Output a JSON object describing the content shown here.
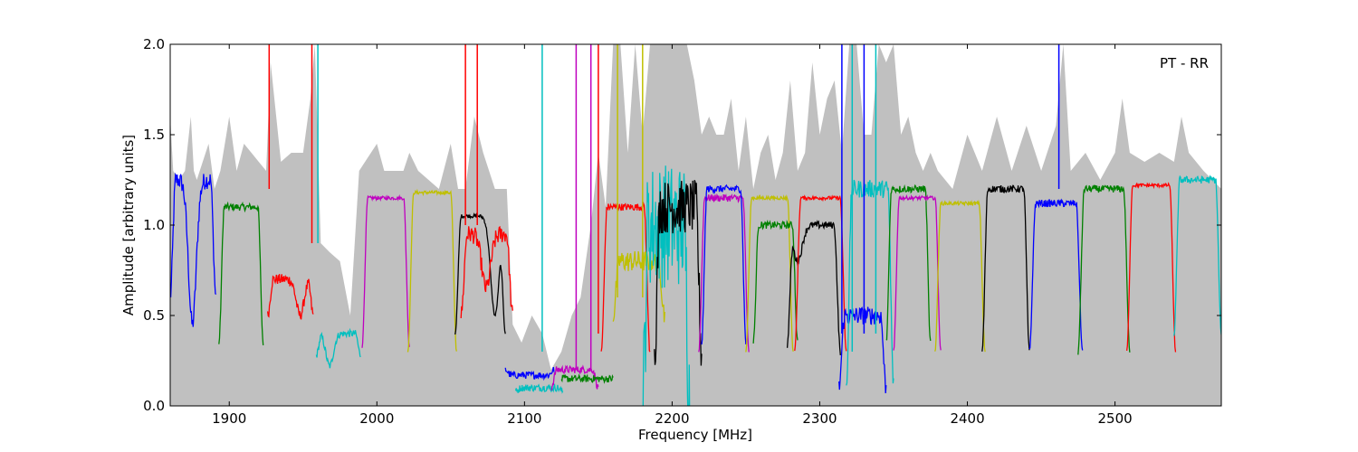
{
  "chart_data": {
    "type": "line",
    "title": "",
    "annotation": "PT - RR",
    "xlabel": "Frequency [MHz]",
    "ylabel": "Amplitude [arbitrary units]",
    "xlim": [
      1860,
      2572
    ],
    "ylim": [
      0.0,
      2.0
    ],
    "xticks": [
      1900,
      2000,
      2100,
      2200,
      2300,
      2400,
      2500
    ],
    "xtick_labels": [
      "1900",
      "2000",
      "2100",
      "2200",
      "2300",
      "2400",
      "2500"
    ],
    "yticks": [
      0.0,
      0.5,
      1.0,
      1.5,
      2.0
    ],
    "ytick_labels": [
      "0.0",
      "0.5",
      "1.0",
      "1.5",
      "2.0"
    ],
    "grid": false,
    "background": {
      "color": "#c0c0c0",
      "x": [
        1860,
        1862,
        1866,
        1870,
        1874,
        1876,
        1878,
        1882,
        1886,
        1890,
        1894,
        1898,
        1900,
        1905,
        1910,
        1915,
        1920,
        1925,
        1928,
        1935,
        1942,
        1950,
        1955,
        1958,
        1962,
        1968,
        1975,
        1982,
        1988,
        1992,
        2000,
        2005,
        2012,
        2018,
        2022,
        2028,
        2035,
        2042,
        2050,
        2055,
        2060,
        2066,
        2072,
        2080,
        2088,
        2092,
        2098,
        2105,
        2112,
        2118,
        2125,
        2132,
        2138,
        2145,
        2150,
        2155,
        2160,
        2165,
        2170,
        2175,
        2180,
        2185,
        2190,
        2195,
        2200,
        2205,
        2210,
        2215,
        2220,
        2225,
        2230,
        2235,
        2240,
        2245,
        2250,
        2255,
        2260,
        2265,
        2270,
        2275,
        2280,
        2285,
        2290,
        2295,
        2300,
        2305,
        2310,
        2315,
        2320,
        2325,
        2330,
        2335,
        2340,
        2345,
        2350,
        2355,
        2360,
        2365,
        2370,
        2375,
        2380,
        2390,
        2400,
        2410,
        2420,
        2430,
        2440,
        2450,
        2460,
        2465,
        2470,
        2480,
        2490,
        2500,
        2505,
        2510,
        2520,
        2530,
        2540,
        2545,
        2550,
        2560,
        2572
      ],
      "y": [
        1.6,
        1.3,
        1.25,
        1.3,
        1.6,
        1.3,
        1.25,
        1.35,
        1.45,
        1.2,
        1.3,
        1.5,
        1.6,
        1.3,
        1.45,
        1.4,
        1.35,
        1.3,
        1.9,
        1.35,
        1.4,
        1.4,
        1.7,
        2.0,
        0.9,
        0.85,
        0.8,
        0.5,
        1.3,
        1.35,
        1.45,
        1.3,
        1.3,
        1.3,
        1.4,
        1.3,
        1.25,
        1.2,
        1.45,
        1.2,
        1.2,
        1.6,
        1.4,
        1.2,
        1.2,
        0.45,
        0.35,
        0.5,
        0.4,
        0.2,
        0.3,
        0.5,
        0.6,
        1.0,
        1.4,
        1.1,
        2.0,
        2.0,
        1.4,
        2.0,
        1.5,
        2.0,
        2.0,
        2.0,
        2.0,
        2.0,
        2.0,
        1.8,
        1.5,
        1.6,
        1.5,
        1.5,
        1.7,
        1.3,
        1.6,
        1.2,
        1.4,
        1.5,
        1.25,
        1.4,
        1.8,
        1.3,
        1.4,
        1.9,
        1.5,
        1.7,
        1.8,
        1.4,
        2.0,
        2.0,
        1.5,
        1.5,
        2.0,
        1.9,
        2.0,
        1.5,
        1.6,
        1.4,
        1.3,
        1.4,
        1.3,
        1.2,
        1.5,
        1.3,
        1.6,
        1.3,
        1.55,
        1.3,
        1.55,
        2.0,
        1.3,
        1.4,
        1.25,
        1.4,
        1.7,
        1.4,
        1.35,
        1.4,
        1.35,
        1.6,
        1.4,
        1.3,
        1.2
      ]
    },
    "series_colors": [
      "#0000ff",
      "#008000",
      "#ff0000",
      "#00bfbf",
      "#bf00bf",
      "#bfbf00",
      "#000000"
    ],
    "segments": [
      {
        "color": "#0000ff",
        "x0": 1860,
        "x1": 1891,
        "y_edge": 0.6,
        "y_top": 1.25,
        "dip": 0.45,
        "dip_at": 1875,
        "noise": 0.05
      },
      {
        "color": "#008000",
        "x0": 1893,
        "x1": 1923,
        "y_edge": 0.35,
        "y_top": 1.1,
        "dip": null,
        "dip_at": null,
        "noise": 0.02
      },
      {
        "color": "#ff0000",
        "x0": 1926,
        "x1": 1957,
        "y_edge": 0.5,
        "y_top": 0.7,
        "dip": 0.5,
        "dip_at": 1948,
        "noise": 0.03
      },
      {
        "color": "#00bfbf",
        "x0": 1959,
        "x1": 1989,
        "y_edge": 0.28,
        "y_top": 0.4,
        "dip": 0.22,
        "dip_at": 1968,
        "noise": 0.02
      },
      {
        "color": "#bf00bf",
        "x0": 1990,
        "x1": 2022,
        "y_edge": 0.33,
        "y_top": 1.15,
        "dip": null,
        "dip_at": null,
        "noise": 0.01
      },
      {
        "color": "#bfbf00",
        "x0": 2021,
        "x1": 2054,
        "y_edge": 0.3,
        "y_top": 1.18,
        "dip": null,
        "dip_at": null,
        "noise": 0.01
      },
      {
        "color": "#000000",
        "x0": 2053,
        "x1": 2087,
        "y_edge": 0.4,
        "y_top": 1.05,
        "dip": 0.5,
        "dip_at": 2080,
        "noise": 0.01
      },
      {
        "color": "#ff0000",
        "x0": 2057,
        "x1": 2092,
        "y_edge": 0.5,
        "y_top": 0.95,
        "dip": 0.65,
        "dip_at": 2074,
        "noise": 0.05
      },
      {
        "color": "#0000ff",
        "x0": 2087,
        "x1": 2120,
        "y_edge": 0.2,
        "y_top": 0.17,
        "dip": null,
        "dip_at": null,
        "noise": 0.02
      },
      {
        "color": "#00bfbf",
        "x0": 2094,
        "x1": 2126,
        "y_edge": 0.08,
        "y_top": 0.1,
        "dip": null,
        "dip_at": null,
        "noise": 0.02
      },
      {
        "color": "#bf00bf",
        "x0": 2118,
        "x1": 2150,
        "y_edge": 0.1,
        "y_top": 0.2,
        "dip": null,
        "dip_at": null,
        "noise": 0.02
      },
      {
        "color": "#008000",
        "x0": 2125,
        "x1": 2160,
        "y_edge": 0.15,
        "y_top": 0.15,
        "dip": null,
        "dip_at": null,
        "noise": 0.02
      },
      {
        "color": "#ff0000",
        "x0": 2152,
        "x1": 2185,
        "y_edge": 0.3,
        "y_top": 1.1,
        "dip": null,
        "dip_at": null,
        "noise": 0.02
      },
      {
        "color": "#bfbf00",
        "x0": 2160,
        "x1": 2195,
        "y_edge": 0.5,
        "y_top": 0.8,
        "dip": 0.8,
        "dip_at": 2180,
        "noise": 0.06
      },
      {
        "color": "#00bfbf",
        "x0": 2180,
        "x1": 2212,
        "y_edge": 0.0,
        "y_top": 1.0,
        "dip": null,
        "dip_at": null,
        "noise": 0.35
      },
      {
        "color": "#000000",
        "x0": 2188,
        "x1": 2220,
        "y_edge": 0.3,
        "y_top": 1.1,
        "dip": null,
        "dip_at": null,
        "noise": 0.15
      },
      {
        "color": "#bf00bf",
        "x0": 2218,
        "x1": 2252,
        "y_edge": 0.3,
        "y_top": 1.15,
        "dip": null,
        "dip_at": null,
        "noise": 0.02
      },
      {
        "color": "#0000ff",
        "x0": 2220,
        "x1": 2250,
        "y_edge": 0.35,
        "y_top": 1.2,
        "dip": null,
        "dip_at": null,
        "noise": 0.02
      },
      {
        "color": "#bfbf00",
        "x0": 2250,
        "x1": 2282,
        "y_edge": 0.3,
        "y_top": 1.15,
        "dip": null,
        "dip_at": null,
        "noise": 0.01
      },
      {
        "color": "#008000",
        "x0": 2255,
        "x1": 2285,
        "y_edge": 0.35,
        "y_top": 1.0,
        "dip": null,
        "dip_at": null,
        "noise": 0.02
      },
      {
        "color": "#000000",
        "x0": 2278,
        "x1": 2314,
        "y_edge": 0.3,
        "y_top": 1.0,
        "dip": 0.8,
        "dip_at": 2285,
        "noise": 0.02
      },
      {
        "color": "#ff0000",
        "x0": 2283,
        "x1": 2318,
        "y_edge": 0.3,
        "y_top": 1.15,
        "dip": null,
        "dip_at": null,
        "noise": 0.01
      },
      {
        "color": "#0000ff",
        "x0": 2313,
        "x1": 2345,
        "y_edge": 0.1,
        "y_top": 0.5,
        "dip": null,
        "dip_at": null,
        "noise": 0.05
      },
      {
        "color": "#00bfbf",
        "x0": 2318,
        "x1": 2350,
        "y_edge": 0.12,
        "y_top": 1.2,
        "dip": null,
        "dip_at": null,
        "noise": 0.05
      },
      {
        "color": "#008000",
        "x0": 2345,
        "x1": 2375,
        "y_edge": 0.35,
        "y_top": 1.2,
        "dip": null,
        "dip_at": null,
        "noise": 0.02
      },
      {
        "color": "#bf00bf",
        "x0": 2350,
        "x1": 2382,
        "y_edge": 0.3,
        "y_top": 1.15,
        "dip": null,
        "dip_at": null,
        "noise": 0.01
      },
      {
        "color": "#bfbf00",
        "x0": 2378,
        "x1": 2412,
        "y_edge": 0.3,
        "y_top": 1.12,
        "dip": null,
        "dip_at": null,
        "noise": 0.01
      },
      {
        "color": "#000000",
        "x0": 2410,
        "x1": 2442,
        "y_edge": 0.3,
        "y_top": 1.2,
        "dip": null,
        "dip_at": null,
        "noise": 0.02
      },
      {
        "color": "#0000ff",
        "x0": 2442,
        "x1": 2478,
        "y_edge": 0.3,
        "y_top": 1.12,
        "dip": null,
        "dip_at": null,
        "noise": 0.02
      },
      {
        "color": "#008000",
        "x0": 2475,
        "x1": 2510,
        "y_edge": 0.3,
        "y_top": 1.2,
        "dip": null,
        "dip_at": null,
        "noise": 0.02
      },
      {
        "color": "#ff0000",
        "x0": 2508,
        "x1": 2541,
        "y_edge": 0.3,
        "y_top": 1.22,
        "dip": null,
        "dip_at": null,
        "noise": 0.01
      },
      {
        "color": "#00bfbf",
        "x0": 2540,
        "x1": 2572,
        "y_edge": 0.4,
        "y_top": 1.25,
        "dip": null,
        "dip_at": null,
        "noise": 0.02
      }
    ],
    "spikes": [
      {
        "color": "#ff0000",
        "x": 1927,
        "y_from": 1.2,
        "y_to": 2.0
      },
      {
        "color": "#ff0000",
        "x": 1956,
        "y_from": 0.9,
        "y_to": 2.0
      },
      {
        "color": "#00bfbf",
        "x": 1960,
        "y_from": 0.9,
        "y_to": 2.0
      },
      {
        "color": "#ff0000",
        "x": 2060,
        "y_from": 1.0,
        "y_to": 2.0
      },
      {
        "color": "#ff0000",
        "x": 2068,
        "y_from": 1.0,
        "y_to": 2.0
      },
      {
        "color": "#00bfbf",
        "x": 2112,
        "y_from": 0.3,
        "y_to": 2.0
      },
      {
        "color": "#bf00bf",
        "x": 2135,
        "y_from": 0.2,
        "y_to": 2.0
      },
      {
        "color": "#bf00bf",
        "x": 2145,
        "y_from": 0.2,
        "y_to": 2.0
      },
      {
        "color": "#ff0000",
        "x": 2150,
        "y_from": 0.4,
        "y_to": 2.0
      },
      {
        "color": "#bfbf00",
        "x": 2163,
        "y_from": 0.6,
        "y_to": 2.0
      },
      {
        "color": "#bfbf00",
        "x": 2180,
        "y_from": 0.6,
        "y_to": 2.0
      },
      {
        "color": "#0000ff",
        "x": 2315,
        "y_from": 0.4,
        "y_to": 2.0
      },
      {
        "color": "#00bfbf",
        "x": 2322,
        "y_from": 0.3,
        "y_to": 2.0
      },
      {
        "color": "#0000ff",
        "x": 2330,
        "y_from": 0.4,
        "y_to": 2.0
      },
      {
        "color": "#00bfbf",
        "x": 2338,
        "y_from": 0.4,
        "y_to": 2.0
      },
      {
        "color": "#0000ff",
        "x": 2462,
        "y_from": 1.2,
        "y_to": 2.0
      }
    ]
  }
}
